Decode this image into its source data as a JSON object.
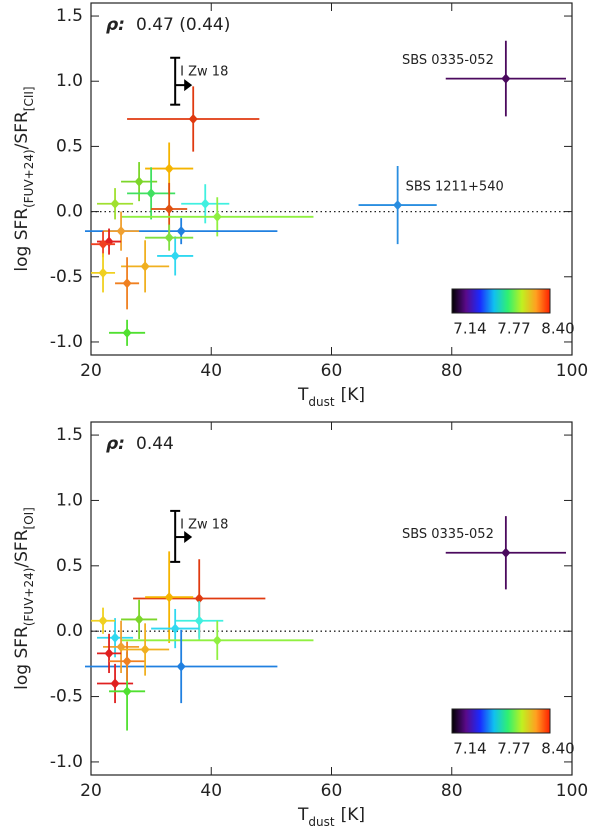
{
  "chart_data": [
    {
      "type": "errorbar-scatter",
      "ylabel": {
        "main": "log SFR",
        "sub1": "(FUV+24)",
        "mid": "/SFR",
        "sub2": "[CII]"
      },
      "xlabel": {
        "main": "T",
        "sub": "dust",
        "unit": "[K]"
      },
      "rho_symbol": "ρ:",
      "rho_value": "0.47 (0.44)",
      "xlim": [
        20,
        100
      ],
      "xticks": [
        20,
        40,
        60,
        80,
        100
      ],
      "ylim": [
        -1.1,
        1.6
      ],
      "yticks": [
        {
          "value": 1.5,
          "label": "1.5"
        },
        {
          "value": 1,
          "label": "1.0"
        },
        {
          "value": 0.5,
          "label": "0.5"
        },
        {
          "value": 0,
          "label": "0.0"
        },
        {
          "value": -0.5,
          "label": "-0.5"
        },
        {
          "value": -1,
          "label": "-1.0"
        }
      ],
      "reference_line": 0,
      "points": [
        {
          "name": "SBS 0335-052",
          "x": 89,
          "y": 1.02,
          "xerr": 10,
          "yerr": 0.29,
          "color": "#4b0a5e"
        },
        {
          "name": "SBS 1211+540",
          "x": 71,
          "y": 0.05,
          "xerr": 6.5,
          "yerr": 0.3,
          "color": "#2a8ee0"
        },
        {
          "x": 37,
          "y": 0.71,
          "xerr": 11,
          "yerr": 0.25,
          "color": "#e03a10"
        },
        {
          "x": 33,
          "y": 0.33,
          "xerr": 4,
          "yerr": 0.2,
          "color": "#f5b400"
        },
        {
          "x": 28,
          "y": 0.23,
          "xerr": 3,
          "yerr": 0.15,
          "color": "#7cd62a"
        },
        {
          "x": 30,
          "y": 0.14,
          "xerr": 4,
          "yerr": 0.2,
          "color": "#40e060"
        },
        {
          "x": 24,
          "y": 0.06,
          "xerr": 3,
          "yerr": 0.12,
          "color": "#a0e030"
        },
        {
          "x": 33,
          "y": 0.02,
          "xerr": 3,
          "yerr": 0.2,
          "color": "#e05010"
        },
        {
          "x": 39,
          "y": 0.06,
          "xerr": 4,
          "yerr": 0.15,
          "color": "#40f0e0"
        },
        {
          "x": 41,
          "y": -0.04,
          "xerr": 16,
          "yerr": 0.15,
          "color": "#90f040"
        },
        {
          "x": 35,
          "y": -0.15,
          "xerr": 16,
          "yerr": 0.1,
          "color": "#2080e0"
        },
        {
          "x": 34,
          "y": -0.34,
          "xerr": 3,
          "yerr": 0.15,
          "color": "#30d8f0"
        },
        {
          "x": 33,
          "y": -0.2,
          "xerr": 4,
          "yerr": 0.1,
          "color": "#80e040"
        },
        {
          "x": 25,
          "y": -0.15,
          "xerr": 3,
          "yerr": 0.15,
          "color": "#f0a030"
        },
        {
          "x": 23,
          "y": -0.23,
          "xerr": 2,
          "yerr": 0.1,
          "color": "#e02020"
        },
        {
          "x": 22,
          "y": -0.25,
          "xerr": 2,
          "yerr": 0.1,
          "color": "#f04020"
        },
        {
          "x": 22,
          "y": -0.47,
          "xerr": 2,
          "yerr": 0.15,
          "color": "#f0d020"
        },
        {
          "x": 29,
          "y": -0.42,
          "xerr": 4,
          "yerr": 0.2,
          "color": "#f0b020"
        },
        {
          "x": 26,
          "y": -0.55,
          "xerr": 2,
          "yerr": 0.2,
          "color": "#f08020"
        },
        {
          "x": 26,
          "y": -0.93,
          "xerr": 3,
          "yerr": 0.1,
          "color": "#50e030"
        }
      ],
      "limit": {
        "name": "I Zw 18",
        "x": 34,
        "y_low": 0.82,
        "y_high": 1.18,
        "y_arrow": 0.97
      },
      "colorbar": {
        "colors": [
          "#000000",
          "#5a0a8a",
          "#1a2aff",
          "#10c0f0",
          "#30f070",
          "#c0f020",
          "#ffa020",
          "#ff2000"
        ],
        "ticks": [
          "7.14",
          "7.77",
          "8.40"
        ]
      }
    },
    {
      "type": "errorbar-scatter",
      "ylabel": {
        "main": "log SFR",
        "sub1": "(FUV+24)",
        "mid": "/SFR",
        "sub2": "[OI]"
      },
      "xlabel": {
        "main": "T",
        "sub": "dust",
        "unit": "[K]"
      },
      "rho_symbol": "ρ:",
      "rho_value": "0.44",
      "xlim": [
        20,
        100
      ],
      "xticks": [
        20,
        40,
        60,
        80,
        100
      ],
      "ylim": [
        -1.1,
        1.6
      ],
      "yticks": [
        {
          "value": 1.5,
          "label": "1.5"
        },
        {
          "value": 1,
          "label": "1.0"
        },
        {
          "value": 0.5,
          "label": "0.5"
        },
        {
          "value": 0,
          "label": "0.0"
        },
        {
          "value": -0.5,
          "label": "-0.5"
        },
        {
          "value": -1,
          "label": "-1.0"
        }
      ],
      "reference_line": 0,
      "points": [
        {
          "name": "SBS 0335-052",
          "x": 89,
          "y": 0.6,
          "xerr": 10,
          "yerr": 0.28,
          "color": "#4b0a5e"
        },
        {
          "x": 38,
          "y": 0.25,
          "xerr": 11,
          "yerr": 0.3,
          "color": "#e03a10"
        },
        {
          "x": 33,
          "y": 0.26,
          "xerr": 4,
          "yerr": 0.35,
          "color": "#f5b400"
        },
        {
          "x": 28,
          "y": 0.09,
          "xerr": 3,
          "yerr": 0.15,
          "color": "#7cd62a"
        },
        {
          "x": 38,
          "y": 0.08,
          "xerr": 4,
          "yerr": 0.15,
          "color": "#40f0e0"
        },
        {
          "x": 34,
          "y": 0.02,
          "xerr": 4,
          "yerr": 0.15,
          "color": "#30d8f0"
        },
        {
          "x": 41,
          "y": -0.07,
          "xerr": 16,
          "yerr": 0.15,
          "color": "#90f040"
        },
        {
          "x": 35,
          "y": -0.27,
          "xerr": 16,
          "yerr": 0.28,
          "color": "#2080e0"
        },
        {
          "x": 24,
          "y": -0.05,
          "xerr": 3,
          "yerr": 0.15,
          "color": "#30d8f0"
        },
        {
          "x": 25,
          "y": -0.12,
          "xerr": 3,
          "yerr": 0.2,
          "color": "#f0a030"
        },
        {
          "x": 23,
          "y": -0.17,
          "xerr": 2,
          "yerr": 0.15,
          "color": "#e02020"
        },
        {
          "x": 24,
          "y": -0.4,
          "xerr": 3,
          "yerr": 0.15,
          "color": "#e02020"
        },
        {
          "x": 26,
          "y": -0.46,
          "xerr": 3,
          "yerr": 0.3,
          "color": "#50e030"
        },
        {
          "x": 26,
          "y": -0.23,
          "xerr": 3,
          "yerr": 0.15,
          "color": "#f08020"
        },
        {
          "x": 29,
          "y": -0.14,
          "xerr": 4,
          "yerr": 0.2,
          "color": "#f0b020"
        },
        {
          "x": 22,
          "y": 0.08,
          "xerr": 2,
          "yerr": 0.1,
          "color": "#f0d020"
        }
      ],
      "limit": {
        "name": "I Zw 18",
        "x": 34,
        "y_low": 0.53,
        "y_high": 0.92,
        "y_arrow": 0.72
      },
      "colorbar": {
        "colors": [
          "#000000",
          "#5a0a8a",
          "#1a2aff",
          "#10c0f0",
          "#30f070",
          "#c0f020",
          "#ffa020",
          "#ff2000"
        ],
        "ticks": [
          "7.14",
          "7.77",
          "8.40"
        ]
      }
    }
  ]
}
